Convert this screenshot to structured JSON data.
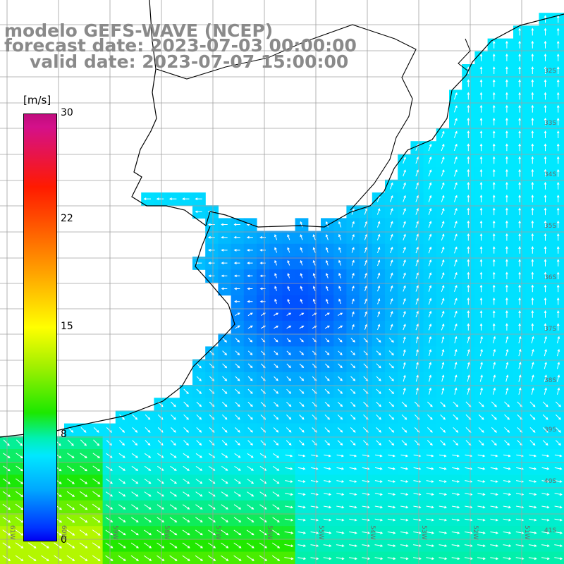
{
  "title": {
    "line1": "modelo GEFS-WAVE (NCEP)",
    "line2": "forecast date: 2023-07-03 00:00:00",
    "line3": "valid date: 2023-07-07 15:00:00"
  },
  "colorbar": {
    "unit_label": "[m/s]",
    "ticks": [
      "30",
      "22",
      "15",
      "8",
      "0"
    ],
    "min": 0,
    "max": 30,
    "colors": [
      "#0000f0",
      "#0033ff",
      "#00a8ff",
      "#00e8ff",
      "#00f0b4",
      "#1ce800",
      "#a3f000",
      "#ffff00",
      "#ffa100",
      "#ff4800",
      "#ff1a00",
      "#d4108a",
      "#c00d7e"
    ]
  },
  "map": {
    "region": "Rio de la Plata / Uruguay coast",
    "lon_labels": [
      "61W",
      "60W",
      "59W",
      "58W",
      "57W",
      "56W",
      "55W",
      "54W",
      "53W",
      "52W",
      "51W"
    ],
    "lat_labels": [
      "32S",
      "33S",
      "34S",
      "35S",
      "36S",
      "37S",
      "38S",
      "39S",
      "40S",
      "41S"
    ],
    "colors": {
      "land": "#ffffff",
      "coast": "#000000",
      "grid": "#a0a0a0",
      "wind_arrow": "#ffffff",
      "title_text": "#8a8a8a"
    }
  }
}
